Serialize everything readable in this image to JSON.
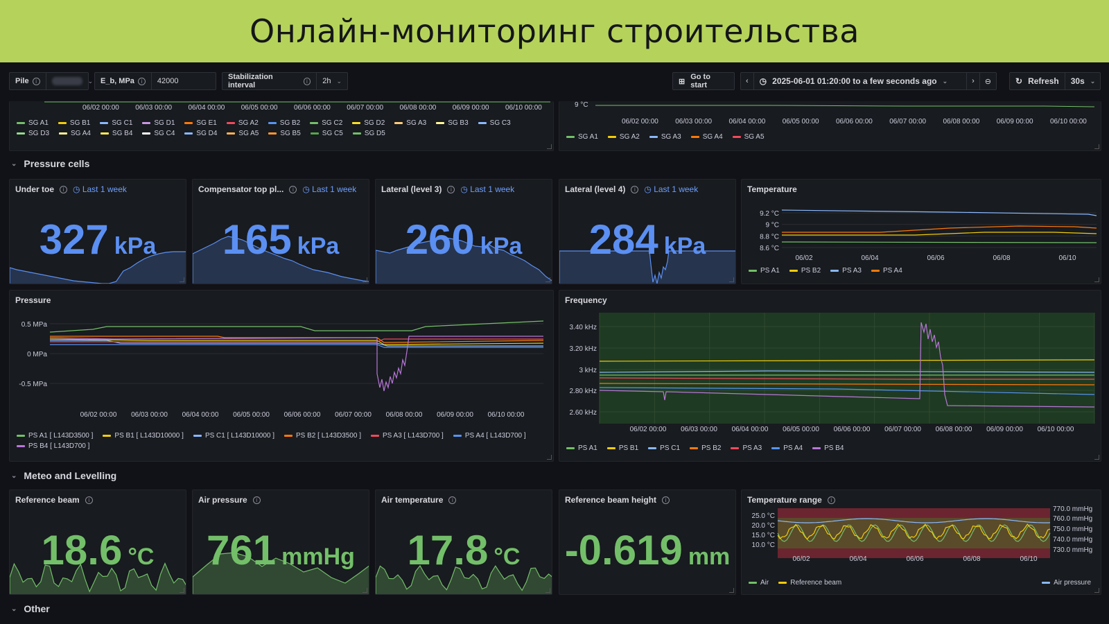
{
  "banner": {
    "title": "Онлайн-мониторинг строительства"
  },
  "toolbar": {
    "pile_label": "Pile",
    "eb_label": "E_b, MPa",
    "eb_value": "42000",
    "stab_label": "Stabilization interval",
    "stab_value": "2h",
    "go_to_start": "Go to start",
    "time_range": "2025-06-01 01:20:00 to a few seconds ago",
    "refresh": "Refresh",
    "refresh_interval": "30s"
  },
  "top_left": {
    "x_ticks": [
      "06/02 00:00",
      "06/03 00:00",
      "06/04 00:00",
      "06/05 00:00",
      "06/06 00:00",
      "06/07 00:00",
      "06/08 00:00",
      "06/09 00:00",
      "06/10 00:00"
    ],
    "legend": [
      {
        "name": "SG A1",
        "color": "#73bf69"
      },
      {
        "name": "SG B1",
        "color": "#f2cc0c"
      },
      {
        "name": "SG C1",
        "color": "#8ab8ff"
      },
      {
        "name": "SG D1",
        "color": "#ca95e5"
      },
      {
        "name": "SG E1",
        "color": "#ff780a"
      },
      {
        "name": "SG A2",
        "color": "#f2495c"
      },
      {
        "name": "SG B2",
        "color": "#5794f2"
      },
      {
        "name": "SG C2",
        "color": "#73bf69"
      },
      {
        "name": "SG D2",
        "color": "#fade2a"
      },
      {
        "name": "SG A3",
        "color": "#ffcb7d"
      },
      {
        "name": "SG B3",
        "color": "#fff899"
      },
      {
        "name": "SG C3",
        "color": "#8ab8ff"
      },
      {
        "name": "SG D3",
        "color": "#96d98d"
      },
      {
        "name": "SG A4",
        "color": "#fff899"
      },
      {
        "name": "SG B4",
        "color": "#ffee52"
      },
      {
        "name": "SG C4",
        "color": "#ffffff"
      },
      {
        "name": "SG D4",
        "color": "#8ab8ff"
      },
      {
        "name": "SG A5",
        "color": "#ffb357"
      },
      {
        "name": "SG B5",
        "color": "#ff9830"
      },
      {
        "name": "SG C5",
        "color": "#56a64b"
      },
      {
        "name": "SG D5",
        "color": "#73bf69"
      }
    ]
  },
  "top_right": {
    "y_tick": "9 °C",
    "x_ticks": [
      "06/02 00:00",
      "06/03 00:00",
      "06/04 00:00",
      "06/05 00:00",
      "06/06 00:00",
      "06/07 00:00",
      "06/08 00:00",
      "06/09 00:00",
      "06/10 00:00"
    ],
    "legend": [
      {
        "name": "SG A1",
        "color": "#73bf69"
      },
      {
        "name": "SG A2",
        "color": "#f2cc0c"
      },
      {
        "name": "SG A3",
        "color": "#8ab8ff"
      },
      {
        "name": "SG A4",
        "color": "#ff780a"
      },
      {
        "name": "SG A5",
        "color": "#f2495c"
      }
    ]
  },
  "sections": {
    "pressure_cells": "Pressure cells",
    "meteo": "Meteo and Levelling",
    "other": "Other"
  },
  "stats_pressure": [
    {
      "title": "Under toe",
      "time": "Last 1 week",
      "value": "327",
      "unit": "kPa",
      "trend": [
        0.25,
        0.22,
        0.2,
        0.18,
        0.16,
        0.14,
        0.12,
        0.1,
        0.08,
        0.06,
        0.05,
        0.04,
        0.03,
        0.02,
        0.02,
        0.05,
        0.2,
        0.25,
        0.32,
        0.38,
        0.42,
        0.45,
        0.47,
        0.48,
        0.48,
        0.48
      ]
    },
    {
      "title": "Compensator top pl...",
      "time": "Last 1 week",
      "value": "165",
      "unit": "kPa",
      "trend": [
        0.45,
        0.5,
        0.55,
        0.6,
        0.66,
        0.7,
        0.68,
        0.65,
        0.6,
        0.55,
        0.5,
        0.46,
        0.42,
        0.38,
        0.35,
        0.3,
        0.26,
        0.22,
        0.2,
        0.18,
        0.15,
        0.12,
        0.1,
        0.08,
        0.06,
        0.05
      ]
    },
    {
      "title": "Lateral (level 3)",
      "time": "Last 1 week",
      "value": "260",
      "unit": "kPa",
      "trend": [
        0.5,
        0.48,
        0.46,
        0.5,
        0.53,
        0.56,
        0.6,
        0.62,
        0.64,
        0.66,
        0.68,
        0.66,
        0.64,
        0.6,
        0.56,
        0.55,
        0.58,
        0.52,
        0.5,
        0.44,
        0.4,
        0.35,
        0.28,
        0.22,
        0.12,
        0.05
      ]
    },
    {
      "title": "Lateral (level 4)",
      "time": "Last 1 week",
      "value": "284",
      "unit": "kPa"
    }
  ],
  "temperature_panel": {
    "title": "Temperature",
    "y_ticks": [
      "9.2 °C",
      "9 °C",
      "8.8 °C",
      "8.6 °C"
    ],
    "x_ticks": [
      "06/02",
      "06/04",
      "06/06",
      "06/08",
      "06/10"
    ],
    "legend": [
      {
        "name": "PS A1",
        "color": "#73bf69"
      },
      {
        "name": "PS B2",
        "color": "#f2cc0c"
      },
      {
        "name": "PS A3",
        "color": "#8ab8ff"
      },
      {
        "name": "PS A4",
        "color": "#ff780a"
      }
    ]
  },
  "pressure_panel": {
    "title": "Pressure",
    "y_ticks": [
      "0.5 MPa",
      "0 MPa",
      "-0.5 MPa"
    ],
    "x_ticks": [
      "06/02 00:00",
      "06/03 00:00",
      "06/04 00:00",
      "06/05 00:00",
      "06/06 00:00",
      "06/07 00:00",
      "06/08 00:00",
      "06/09 00:00",
      "06/10 00:00"
    ],
    "legend": [
      {
        "name": "PS A1 [ L143D3500 ]",
        "color": "#73bf69"
      },
      {
        "name": "PS B1 [ L143D10000 ]",
        "color": "#f2cc0c"
      },
      {
        "name": "PS C1 [ L143D10000 ]",
        "color": "#8ab8ff"
      },
      {
        "name": "PS B2 [ L143D3500 ]",
        "color": "#ff780a"
      },
      {
        "name": "PS A3 [ L143D700 ]",
        "color": "#f2495c"
      },
      {
        "name": "PS A4 [ L143D700 ]",
        "color": "#5794f2"
      },
      {
        "name": "PS B4 [ L143D700 ]",
        "color": "#b877d9"
      }
    ]
  },
  "frequency_panel": {
    "title": "Frequency",
    "y_ticks": [
      "3.40 kHz",
      "3.20 kHz",
      "3 kHz",
      "2.80 kHz",
      "2.60 kHz"
    ],
    "x_ticks": [
      "06/02 00:00",
      "06/03 00:00",
      "06/04 00:00",
      "06/05 00:00",
      "06/06 00:00",
      "06/07 00:00",
      "06/08 00:00",
      "06/09 00:00",
      "06/10 00:00"
    ],
    "legend": [
      {
        "name": "PS A1",
        "color": "#73bf69"
      },
      {
        "name": "PS B1",
        "color": "#f2cc0c"
      },
      {
        "name": "PS C1",
        "color": "#8ab8ff"
      },
      {
        "name": "PS B2",
        "color": "#ff780a"
      },
      {
        "name": "PS A3",
        "color": "#f2495c"
      },
      {
        "name": "PS A4",
        "color": "#5794f2"
      },
      {
        "name": "PS B4",
        "color": "#b877d9"
      }
    ]
  },
  "stats_meteo": [
    {
      "title": "Reference beam",
      "value": "18.6",
      "unit": "°C"
    },
    {
      "title": "Air pressure",
      "value": "761",
      "unit": "mmHg"
    },
    {
      "title": "Air temperature",
      "value": "17.8",
      "unit": "°C"
    },
    {
      "title": "Reference beam height",
      "value": "-0.619",
      "unit": "mm"
    }
  ],
  "temp_range_panel": {
    "title": "Temperature range",
    "y_ticks_left": [
      "25.0 °C",
      "20.0 °C",
      "15.0 °C",
      "10.0 °C"
    ],
    "y_ticks_right": [
      "770.0 mmHg",
      "760.0 mmHg",
      "750.0 mmHg",
      "740.0 mmHg",
      "730.0 mmHg"
    ],
    "x_ticks": [
      "06/02",
      "06/04",
      "06/06",
      "06/08",
      "06/10"
    ],
    "legend_left": [
      {
        "name": "Air",
        "color": "#73bf69"
      },
      {
        "name": "Reference beam",
        "color": "#f2cc0c"
      }
    ],
    "legend_right": [
      {
        "name": "Air pressure",
        "color": "#8ab8ff"
      }
    ]
  }
}
